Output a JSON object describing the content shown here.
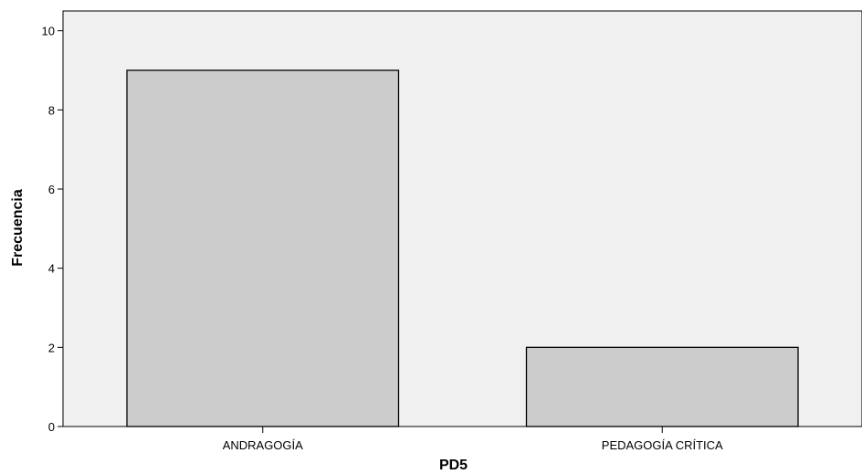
{
  "chart_data": {
    "type": "bar",
    "title": "",
    "xlabel": "PD5",
    "ylabel": "Frecuencia",
    "categories": [
      "ANDRAGOGÍA",
      "PEDAGOGÍA CRÍTICA"
    ],
    "values": [
      9,
      2
    ],
    "ylim": [
      0,
      10.5
    ],
    "yticks": [
      0,
      2,
      4,
      6,
      8,
      10
    ],
    "grid": false,
    "legend": "none",
    "colors": {
      "plot_background": "#f0f0f0",
      "bar_fill": "#cccccc",
      "bar_stroke": "#000000",
      "axis": "#000000"
    }
  }
}
